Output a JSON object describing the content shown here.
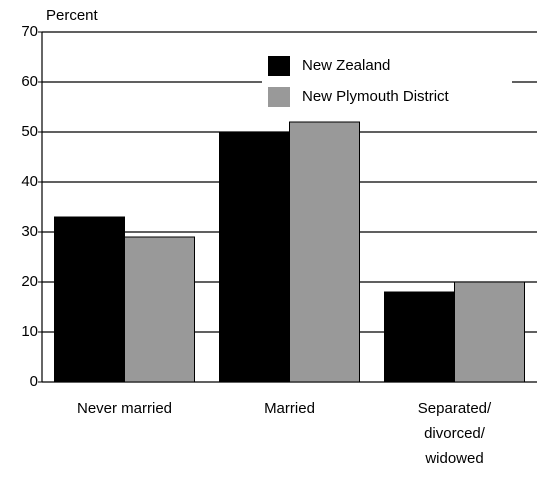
{
  "chart_data": {
    "type": "bar",
    "y_label": "Percent",
    "categories": [
      "Never married",
      "Married",
      "Separated/\ndivorced/\nwidowed"
    ],
    "series": [
      {
        "name": "New Zealand",
        "color": "#000000",
        "values": [
          33,
          50,
          18
        ]
      },
      {
        "name": "New Plymouth District",
        "color": "#999999",
        "values": [
          29,
          52,
          20
        ]
      }
    ],
    "ylim": [
      0,
      70
    ],
    "yticks": [
      0,
      10,
      20,
      30,
      40,
      50,
      60,
      70
    ],
    "grid": true,
    "legend": "top-right"
  }
}
